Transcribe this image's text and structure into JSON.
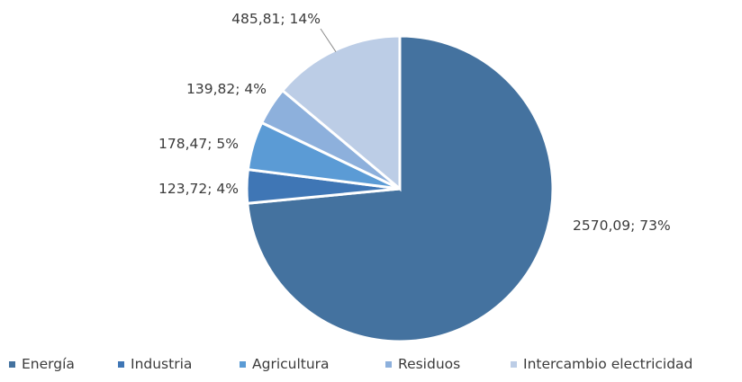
{
  "chart_data": {
    "type": "pie",
    "categories": [
      "Energía",
      "Industria",
      "Agricultura",
      "Residuos",
      "Intercambio electricidad"
    ],
    "values": [
      2570.09,
      123.72,
      178.47,
      139.82,
      485.81
    ],
    "percentages": [
      73,
      4,
      5,
      4,
      14
    ],
    "data_labels": [
      "2570,09; 73%",
      "123,72; 4%",
      "178,47; 5%",
      "139,82; 4%",
      "485,81; 14%"
    ],
    "colors": [
      "#44729f",
      "#3f76b5",
      "#5b9bd5",
      "#8db0dc",
      "#bccde6"
    ],
    "start_angle_deg": 0,
    "direction": "clockwise",
    "legend": {
      "position": "bottom",
      "entries": [
        "Energía",
        "Industria",
        "Agricultura",
        "Residuos",
        "Intercambio electricidad"
      ]
    }
  }
}
